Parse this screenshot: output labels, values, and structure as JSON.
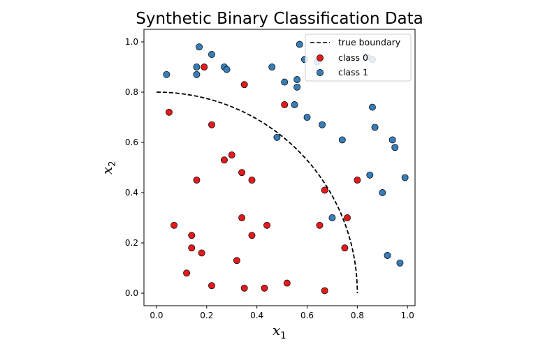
{
  "chart_data": {
    "type": "scatter",
    "title": "Synthetic Binary Classification Data",
    "xlabel": "x",
    "xlabel_sub": "1",
    "ylabel": "x",
    "ylabel_sub": "2",
    "xlim": [
      -0.05,
      1.03
    ],
    "ylim": [
      -0.05,
      1.05
    ],
    "xticks": [
      0.0,
      0.2,
      0.4,
      0.6,
      0.8,
      1.0
    ],
    "yticks": [
      0.0,
      0.2,
      0.4,
      0.6,
      0.8,
      1.0
    ],
    "grid": false,
    "legend_position": "top-right",
    "boundary": {
      "name": "true boundary",
      "shape": "quarter-circle",
      "radius": 0.8,
      "color": "#000000",
      "style": "dashed"
    },
    "series": [
      {
        "name": "class 0",
        "color": "#e41a1c",
        "points": [
          [
            0.19,
            0.9
          ],
          [
            0.35,
            0.83
          ],
          [
            0.05,
            0.72
          ],
          [
            0.51,
            0.75
          ],
          [
            0.22,
            0.67
          ],
          [
            0.3,
            0.55
          ],
          [
            0.27,
            0.53
          ],
          [
            0.34,
            0.48
          ],
          [
            0.16,
            0.45
          ],
          [
            0.38,
            0.45
          ],
          [
            0.67,
            0.41
          ],
          [
            0.8,
            0.45
          ],
          [
            0.07,
            0.27
          ],
          [
            0.34,
            0.3
          ],
          [
            0.44,
            0.27
          ],
          [
            0.65,
            0.27
          ],
          [
            0.76,
            0.3
          ],
          [
            0.14,
            0.23
          ],
          [
            0.38,
            0.23
          ],
          [
            0.14,
            0.18
          ],
          [
            0.18,
            0.16
          ],
          [
            0.32,
            0.13
          ],
          [
            0.75,
            0.18
          ],
          [
            0.12,
            0.08
          ],
          [
            0.22,
            0.03
          ],
          [
            0.35,
            0.02
          ],
          [
            0.43,
            0.02
          ],
          [
            0.52,
            0.04
          ],
          [
            0.67,
            0.01
          ]
        ]
      },
      {
        "name": "class 1",
        "color": "#377eb8",
        "points": [
          [
            0.04,
            0.87
          ],
          [
            0.17,
            0.98
          ],
          [
            0.22,
            0.95
          ],
          [
            0.16,
            0.9
          ],
          [
            0.16,
            0.87
          ],
          [
            0.27,
            0.9
          ],
          [
            0.28,
            0.89
          ],
          [
            0.46,
            0.9
          ],
          [
            0.51,
            0.84
          ],
          [
            0.56,
            0.85
          ],
          [
            0.56,
            0.82
          ],
          [
            0.57,
            0.99
          ],
          [
            0.59,
            0.93
          ],
          [
            0.64,
            0.92
          ],
          [
            0.84,
            0.94
          ],
          [
            0.86,
            0.93
          ],
          [
            0.55,
            0.75
          ],
          [
            0.6,
            0.7
          ],
          [
            0.66,
            0.67
          ],
          [
            0.48,
            0.62
          ],
          [
            0.74,
            0.61
          ],
          [
            0.86,
            0.74
          ],
          [
            0.87,
            0.66
          ],
          [
            0.94,
            0.61
          ],
          [
            0.95,
            0.58
          ],
          [
            0.85,
            0.47
          ],
          [
            0.9,
            0.4
          ],
          [
            0.99,
            0.46
          ],
          [
            0.7,
            0.3
          ],
          [
            0.92,
            0.15
          ],
          [
            0.97,
            0.12
          ]
        ]
      }
    ]
  }
}
